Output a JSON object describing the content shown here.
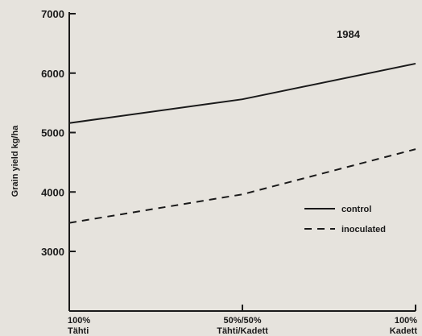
{
  "chart_data": {
    "type": "line",
    "ylabel": "Grain yield kg/ha",
    "xlabel": "",
    "annotation": "1984",
    "categories": [
      [
        "100%",
        "Tähti"
      ],
      [
        "50%/50%",
        "Tähti/Kadett"
      ],
      [
        "100%",
        "Kadett"
      ]
    ],
    "ylim": [
      2000,
      7000
    ],
    "yticks": [
      3000,
      4000,
      5000,
      6000,
      7000
    ],
    "series": [
      {
        "name": "control",
        "values": [
          5160,
          5560,
          6160
        ],
        "style": "solid",
        "color": "#1a1a1a"
      },
      {
        "name": "inoculated",
        "values": [
          3480,
          3960,
          4720
        ],
        "style": "dashed",
        "color": "#1a1a1a"
      }
    ],
    "legend": "right",
    "grid": false
  }
}
